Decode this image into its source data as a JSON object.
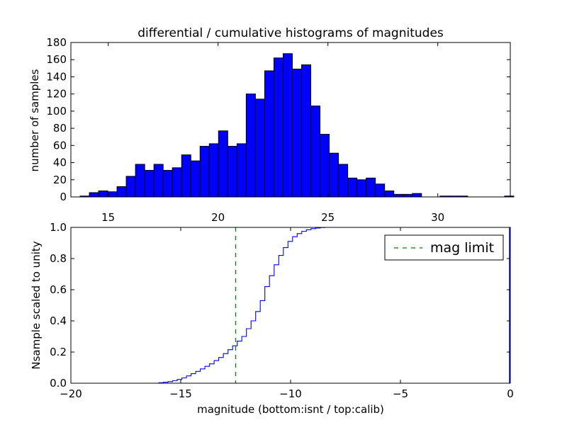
{
  "chart_data": [
    {
      "type": "bar",
      "title": "differential / cumulative histograms of magnitudes",
      "xlabel": "",
      "ylabel": "number of samples",
      "xlim": [
        13.3,
        33.3
      ],
      "ylim": [
        0,
        180
      ],
      "x_ticks": [
        "15",
        "20",
        "25",
        "30"
      ],
      "x_tick_values": [
        15,
        20,
        25,
        30
      ],
      "y_ticks": [
        "0",
        "20",
        "40",
        "60",
        "80",
        "100",
        "120",
        "140",
        "160",
        "180"
      ],
      "y_tick_values": [
        0,
        20,
        40,
        60,
        80,
        100,
        120,
        140,
        160,
        180
      ],
      "bar_color": "#0000ff",
      "bin_start": 13.72,
      "bin_width": 0.42,
      "values": [
        1,
        5,
        7,
        6,
        12,
        24,
        38,
        31,
        38,
        31,
        34,
        49,
        42,
        59,
        62,
        77,
        59,
        62,
        120,
        114,
        147,
        162,
        167,
        149,
        154,
        106,
        73,
        51,
        38,
        22,
        20,
        22,
        15,
        7,
        3,
        3,
        4,
        0,
        0,
        1,
        1,
        1,
        0,
        0,
        0,
        0,
        1
      ]
    },
    {
      "type": "line",
      "title": "",
      "xlabel": "magnitude (bottom:isnt / top:calib)",
      "ylabel": "Nsample scaled to unity",
      "xlim": [
        -20,
        0
      ],
      "ylim": [
        0,
        1
      ],
      "x_ticks": [
        "−20",
        "−15",
        "−10",
        "−5",
        "0"
      ],
      "x_tick_values": [
        -20,
        -15,
        -10,
        -5,
        0
      ],
      "y_ticks": [
        "0.0",
        "0.2",
        "0.4",
        "0.6",
        "0.8",
        "1.0"
      ],
      "y_tick_values": [
        0,
        0.2,
        0.4,
        0.6,
        0.8,
        1.0
      ],
      "line_color": "#0000ff",
      "step_start": -16.0,
      "step_width": 0.21,
      "x_end": -6.3,
      "values": [
        0.003,
        0.006,
        0.01,
        0.016,
        0.024,
        0.034,
        0.047,
        0.061,
        0.076,
        0.092,
        0.108,
        0.124,
        0.145,
        0.165,
        0.19,
        0.215,
        0.24,
        0.27,
        0.3,
        0.35,
        0.4,
        0.46,
        0.53,
        0.62,
        0.69,
        0.76,
        0.82,
        0.87,
        0.91,
        0.94,
        0.96,
        0.975,
        0.985,
        0.992,
        0.996,
        0.999,
        1.0,
        1.0,
        1.0,
        1.0,
        1.0,
        1.0,
        1.0,
        1.0,
        1.0,
        1.0,
        1.0
      ],
      "mag_limit": -12.5,
      "mag_limit_color": "#008000",
      "legend": {
        "label": "mag limit",
        "position": "top-right"
      }
    }
  ]
}
